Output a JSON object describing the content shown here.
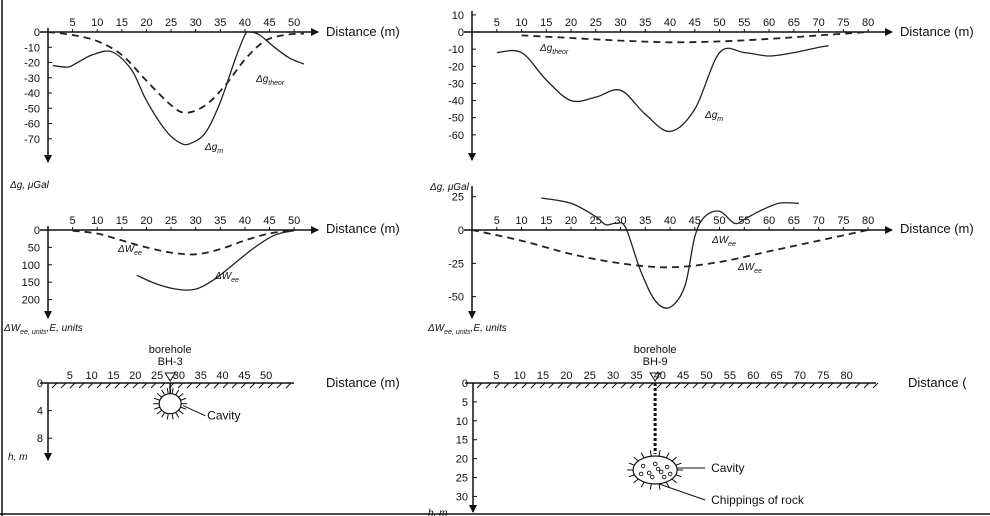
{
  "chart_data": [
    {
      "id": "gravity-left",
      "type": "line",
      "x_axis_label": "Distance (m)",
      "y_axis_label": "Δg, μGal",
      "x_ticks": [
        5,
        10,
        15,
        20,
        25,
        30,
        35,
        40,
        45,
        50
      ],
      "y_ticks": [
        0,
        -10,
        -20,
        -30,
        -40,
        -50,
        -60,
        -70
      ],
      "xlim": [
        0,
        52
      ],
      "ylim": [
        0,
        -80
      ],
      "series": [
        {
          "name": "Δg_theor",
          "style": "dashed",
          "x": [
            0,
            5,
            10,
            15,
            20,
            25,
            28,
            32,
            36,
            40,
            44,
            48,
            52
          ],
          "y": [
            0,
            -2,
            -6,
            -15,
            -32,
            -48,
            -53,
            -48,
            -35,
            -18,
            -6,
            -2,
            -1
          ]
        },
        {
          "name": "Δg_m",
          "style": "solid",
          "x": [
            1,
            4,
            6,
            9,
            13,
            17,
            20,
            24,
            27,
            29,
            32,
            35,
            38,
            40,
            41,
            43,
            46,
            49,
            52
          ],
          "y": [
            -22,
            -23,
            -20,
            -15,
            -13,
            -25,
            -45,
            -65,
            -73,
            -73,
            -66,
            -46,
            -18,
            -2,
            0,
            -2,
            -10,
            -17,
            -21
          ]
        }
      ],
      "curve_labels": [
        "Δg_theor",
        "Δg_m"
      ]
    },
    {
      "id": "gravity-right",
      "type": "line",
      "x_axis_label": "Distance (m)",
      "y_axis_label": "Δg, μGal",
      "x_ticks": [
        5,
        10,
        15,
        20,
        25,
        30,
        35,
        40,
        45,
        50,
        55,
        60,
        65,
        70,
        75,
        80
      ],
      "y_ticks": [
        10,
        0,
        -10,
        -20,
        -30,
        -40,
        -50,
        -60
      ],
      "xlim": [
        0,
        82
      ],
      "ylim": [
        10,
        -70
      ],
      "series": [
        {
          "name": "Δg_theor",
          "style": "dashed",
          "x": [
            10,
            20,
            30,
            40,
            50,
            60,
            70,
            80
          ],
          "y": [
            -2,
            -3.5,
            -5,
            -6,
            -5.5,
            -4,
            -2,
            0
          ]
        },
        {
          "name": "Δg_m",
          "style": "solid",
          "x": [
            5,
            10,
            15,
            20,
            25,
            30,
            35,
            40,
            45,
            50,
            55,
            60,
            65,
            70,
            72
          ],
          "y": [
            -12,
            -12,
            -28,
            -40,
            -38,
            -34,
            -48,
            -58,
            -45,
            -12,
            -12,
            -14,
            -12,
            -9,
            -8
          ]
        }
      ],
      "curve_labels": [
        "Δg_theor",
        "Δg_m"
      ]
    },
    {
      "id": "emission-left",
      "type": "line",
      "x_axis_label": "Distance (m)",
      "y_axis_label": "ΔW_ee,E, units",
      "x_ticks": [
        5,
        10,
        15,
        20,
        25,
        30,
        35,
        40,
        45,
        50
      ],
      "y_ticks": [
        0,
        -50,
        -100,
        -150,
        -200
      ],
      "y_tick_labels": [
        "0",
        "50",
        "100",
        "150",
        "200"
      ],
      "xlim": [
        0,
        52
      ],
      "ylim": [
        0,
        -230
      ],
      "series": [
        {
          "name": "ΔW_ee_theor",
          "style": "dashed",
          "x": [
            5,
            10,
            15,
            20,
            25,
            30,
            35,
            40,
            45,
            50
          ],
          "y": [
            -2,
            -10,
            -30,
            -50,
            -65,
            -70,
            -55,
            -30,
            -10,
            -1
          ]
        },
        {
          "name": "ΔW_ee_m",
          "style": "solid",
          "x": [
            18,
            22,
            26,
            30,
            34,
            38,
            42,
            46,
            50
          ],
          "y": [
            -130,
            -155,
            -170,
            -170,
            -140,
            -95,
            -50,
            -15,
            -2
          ]
        }
      ],
      "curve_labels": [
        "ΔW_ee_theor",
        "ΔW_ee_m"
      ]
    },
    {
      "id": "emission-right",
      "type": "line",
      "x_axis_label": "Distance (m)",
      "y_axis_label": "ΔW_ee,E, units",
      "x_ticks": [
        5,
        10,
        15,
        20,
        25,
        30,
        35,
        40,
        45,
        50,
        55,
        60,
        65,
        70,
        75,
        80
      ],
      "y_ticks": [
        25,
        0,
        -25,
        -50
      ],
      "xlim": [
        0,
        82
      ],
      "ylim": [
        30,
        -60
      ],
      "series": [
        {
          "name": "ΔW_ee_theor",
          "style": "dashed",
          "x": [
            0,
            10,
            20,
            30,
            40,
            50,
            60,
            70,
            80
          ],
          "y": [
            0,
            -8,
            -18,
            -25,
            -28,
            -24,
            -16,
            -8,
            0
          ]
        },
        {
          "name": "ΔW_ee_m",
          "style": "solid",
          "x": [
            14,
            20,
            25,
            27,
            29,
            31,
            34,
            37,
            40,
            43,
            45,
            47,
            50,
            53,
            55,
            58,
            62,
            66
          ],
          "y": [
            24,
            20,
            10,
            4,
            5,
            2,
            -30,
            -53,
            -58,
            -42,
            -5,
            10,
            14,
            5,
            8,
            14,
            20,
            20
          ]
        }
      ],
      "curve_labels": [
        "ΔW_ee_m",
        "ΔW_ee_theor"
      ]
    },
    {
      "id": "section-left",
      "type": "diagram",
      "x_axis_label": "Distance (m)",
      "y_axis_label": "h, m",
      "x_ticks": [
        5,
        10,
        15,
        20,
        25,
        30,
        35,
        40,
        45,
        50
      ],
      "y_ticks": [
        0,
        4,
        8
      ],
      "xlim": [
        0,
        55
      ],
      "ylim": [
        0,
        10
      ],
      "borehole": {
        "label": "borehole",
        "name": "BH-3",
        "x": 28
      },
      "cavity": {
        "x": 28,
        "depth": 3,
        "label": "Cavity"
      }
    },
    {
      "id": "section-right",
      "type": "diagram",
      "x_axis_label": "Distance (",
      "y_axis_label": "h, m",
      "x_ticks": [
        5,
        10,
        15,
        20,
        25,
        30,
        35,
        40,
        45,
        50,
        55,
        60,
        65,
        70,
        75,
        80
      ],
      "y_ticks": [
        0,
        5,
        10,
        15,
        20,
        25,
        30
      ],
      "xlim": [
        0,
        85
      ],
      "ylim": [
        0,
        32
      ],
      "borehole": {
        "label": "borehole",
        "name": "BH-9",
        "x": 39
      },
      "cavity": {
        "x": 39,
        "depth": 23,
        "label": "Cavity",
        "label2": "Chippings of rock"
      }
    }
  ]
}
